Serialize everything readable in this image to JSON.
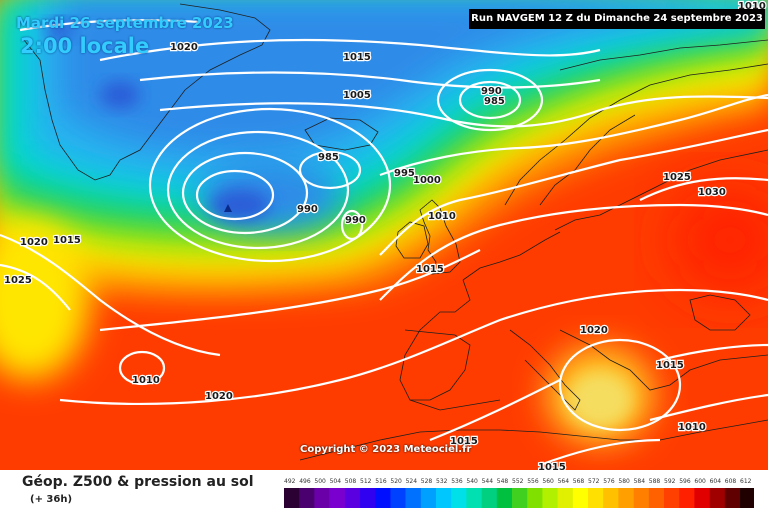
{
  "header": {
    "date": "Mardi 26 septembre 2023",
    "local_time": "2:00 locale",
    "run_info": "Run NAVGEM 12 Z du Dimanche 24 septembre 2023"
  },
  "map": {
    "copyright": "Copyright © 2023 Meteociel.fr",
    "pressure_labels": [
      "1010",
      "1020",
      "1015",
      "1005",
      "990",
      "985",
      "985",
      "995",
      "1000",
      "990",
      "990",
      "1010",
      "1020",
      "1015",
      "1015",
      "1025",
      "1025",
      "1030",
      "1020",
      "1015",
      "1010",
      "1010",
      "1020",
      "1015",
      "1015"
    ],
    "colors": {
      "ridge_core": "#f5dd60",
      "low_core": "#2a5dd8",
      "contour": "#ffffff",
      "coastline": "#1f1f1f",
      "run_box_bg": "#000000",
      "header_text": "#33ccff"
    }
  },
  "footer": {
    "title": "Géop. Z500 & pression au sol",
    "subtitle": "(+ 36h)",
    "scale_labels": [
      "492",
      "496",
      "500",
      "504",
      "508",
      "512",
      "516",
      "520",
      "524",
      "528",
      "532",
      "536",
      "540",
      "544",
      "548",
      "552",
      "556",
      "560",
      "564",
      "568",
      "572",
      "576",
      "580",
      "584",
      "588",
      "592",
      "596",
      "600",
      "604",
      "608",
      "612"
    ],
    "scale_colors": [
      "#2b0033",
      "#4b0070",
      "#6a00a8",
      "#7a00d0",
      "#5a00e0",
      "#3000f0",
      "#0010ff",
      "#0040ff",
      "#0070ff",
      "#00a0ff",
      "#00c8ff",
      "#00e0e8",
      "#00e0b0",
      "#00d080",
      "#00c040",
      "#40d020",
      "#80e000",
      "#b0f000",
      "#e0f000",
      "#ffff00",
      "#ffe000",
      "#ffc000",
      "#ffa000",
      "#ff8000",
      "#ff6000",
      "#ff4000",
      "#ff2000",
      "#e00000",
      "#a00000",
      "#600000",
      "#200000"
    ]
  }
}
